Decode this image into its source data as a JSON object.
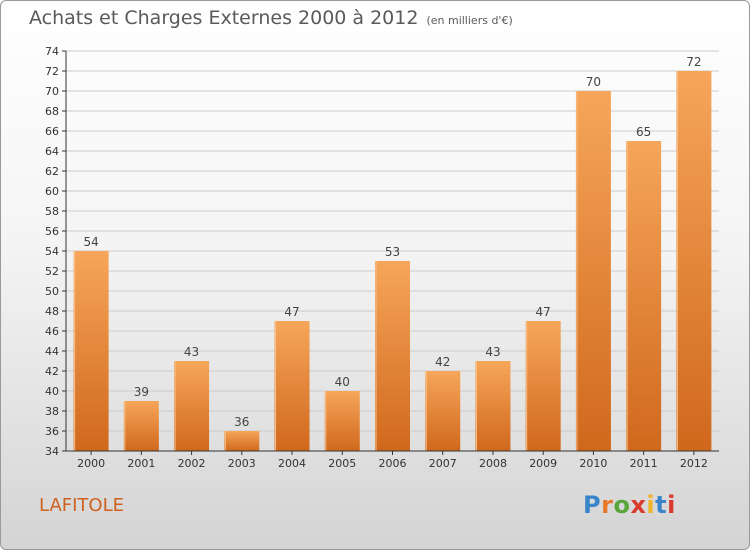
{
  "title": "Achats et Charges Externes 2000 à 2012",
  "unit_note": "(en milliers d'€)",
  "place_name": "LAFITOLE",
  "logo": {
    "text": "Proxiti",
    "letter_colors": [
      "#3a84c9",
      "#e8792c",
      "#5aa63c",
      "#d83a2e",
      "#f0b42a",
      "#3a84c9",
      "#d83a2e"
    ]
  },
  "colors": {
    "bar_top": "#f6a65a",
    "bar_bottom": "#d0681c",
    "axis": "#333333",
    "grid": "#cccccc"
  },
  "chart_data": {
    "type": "bar",
    "categories": [
      "2000",
      "2001",
      "2002",
      "2003",
      "2004",
      "2005",
      "2006",
      "2007",
      "2008",
      "2009",
      "2010",
      "2011",
      "2012"
    ],
    "values": [
      54,
      39,
      43,
      36,
      47,
      40,
      53,
      42,
      43,
      47,
      70,
      65,
      72
    ],
    "ylim": [
      34,
      74
    ],
    "ytick_step": 2,
    "grid": true,
    "data_labels": true
  }
}
